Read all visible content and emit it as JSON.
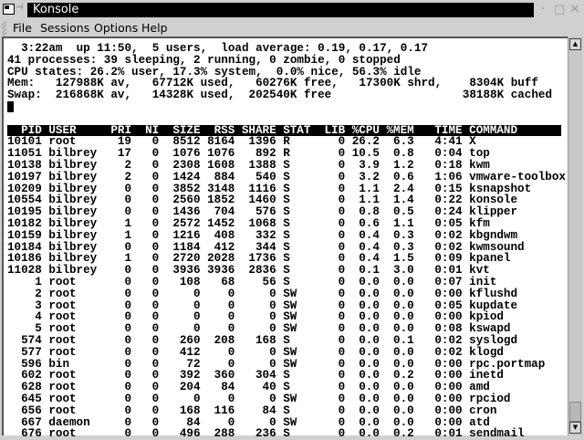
{
  "window": {
    "title": "Konsole",
    "icons": {
      "app": "terminal-icon",
      "pin": "pin-icon",
      "minimize": "minimize-icon",
      "maximize": "maximize-icon",
      "close": "close-icon"
    }
  },
  "menu": [
    "File",
    "Sessions",
    "Options",
    "Help"
  ],
  "summary": [
    "  3:22am  up 11:50,  5 users,  load average: 0.19, 0.17, 0.17",
    "41 processes: 39 sleeping, 2 running, 0 zombie, 0 stopped",
    "CPU states: 26.2% user, 17.3% system,  0.0% nice, 56.3% idle",
    "Mem:   127988K av,   67712K used,   60276K free,   17300K shrd,    8304K buff",
    "Swap:  216868K av,   14328K used,  202540K free                   38188K cached"
  ],
  "columns": [
    "PID",
    "USER",
    "PRI",
    "NI",
    "SIZE",
    "RSS",
    "SHARE",
    "STAT",
    "LIB",
    "%CPU",
    "%MEM",
    "TIME",
    "COMMAND"
  ],
  "processes": [
    [
      "10101",
      "root",
      "19",
      "0",
      "8512",
      "8164",
      "1396",
      "R",
      "0",
      "26.2",
      "6.3",
      "4:41",
      "X"
    ],
    [
      "11051",
      "bilbrey",
      "17",
      "0",
      "1076",
      "1076",
      "892",
      "R",
      "0",
      "10.5",
      "0.8",
      "0:04",
      "top"
    ],
    [
      "10138",
      "bilbrey",
      "2",
      "0",
      "2308",
      "1608",
      "1388",
      "S",
      "0",
      "3.9",
      "1.2",
      "0:18",
      "kwm"
    ],
    [
      "10197",
      "bilbrey",
      "2",
      "0",
      "1424",
      "884",
      "540",
      "S",
      "0",
      "3.2",
      "0.6",
      "1:06",
      "vmware-toolbox"
    ],
    [
      "10209",
      "bilbrey",
      "0",
      "0",
      "3852",
      "3148",
      "1116",
      "S",
      "0",
      "1.1",
      "2.4",
      "0:15",
      "ksnapshot"
    ],
    [
      "10554",
      "bilbrey",
      "0",
      "0",
      "2560",
      "1852",
      "1460",
      "S",
      "0",
      "1.1",
      "1.4",
      "0:22",
      "konsole"
    ],
    [
      "10195",
      "bilbrey",
      "0",
      "0",
      "1436",
      "704",
      "576",
      "S",
      "0",
      "0.8",
      "0.5",
      "0:24",
      "klipper"
    ],
    [
      "10182",
      "bilbrey",
      "1",
      "0",
      "2572",
      "1452",
      "1068",
      "S",
      "0",
      "0.6",
      "1.1",
      "0:05",
      "kfm"
    ],
    [
      "10159",
      "bilbrey",
      "1",
      "0",
      "1216",
      "408",
      "332",
      "S",
      "0",
      "0.4",
      "0.3",
      "0:02",
      "kbgndwm"
    ],
    [
      "10184",
      "bilbrey",
      "0",
      "0",
      "1184",
      "412",
      "344",
      "S",
      "0",
      "0.4",
      "0.3",
      "0:02",
      "kwmsound"
    ],
    [
      "10186",
      "bilbrey",
      "1",
      "0",
      "2720",
      "2028",
      "1736",
      "S",
      "0",
      "0.4",
      "1.5",
      "0:09",
      "kpanel"
    ],
    [
      "11028",
      "bilbrey",
      "0",
      "0",
      "3936",
      "3936",
      "2836",
      "S",
      "0",
      "0.1",
      "3.0",
      "0:01",
      "kvt"
    ],
    [
      "1",
      "root",
      "0",
      "0",
      "108",
      "68",
      "56",
      "S",
      "0",
      "0.0",
      "0.0",
      "0:07",
      "init"
    ],
    [
      "2",
      "root",
      "0",
      "0",
      "0",
      "0",
      "0",
      "SW",
      "0",
      "0.0",
      "0.0",
      "0:00",
      "kflushd"
    ],
    [
      "3",
      "root",
      "0",
      "0",
      "0",
      "0",
      "0",
      "SW",
      "0",
      "0.0",
      "0.0",
      "0:05",
      "kupdate"
    ],
    [
      "4",
      "root",
      "0",
      "0",
      "0",
      "0",
      "0",
      "SW",
      "0",
      "0.0",
      "0.0",
      "0:00",
      "kpiod"
    ],
    [
      "5",
      "root",
      "0",
      "0",
      "0",
      "0",
      "0",
      "SW",
      "0",
      "0.0",
      "0.0",
      "0:08",
      "kswapd"
    ],
    [
      "574",
      "root",
      "0",
      "0",
      "260",
      "208",
      "168",
      "S",
      "0",
      "0.0",
      "0.1",
      "0:02",
      "syslogd"
    ],
    [
      "577",
      "root",
      "0",
      "0",
      "412",
      "0",
      "0",
      "SW",
      "0",
      "0.0",
      "0.0",
      "0:02",
      "klogd"
    ],
    [
      "596",
      "bin",
      "0",
      "0",
      "72",
      "0",
      "0",
      "SW",
      "0",
      "0.0",
      "0.0",
      "0:00",
      "rpc.portmap"
    ],
    [
      "602",
      "root",
      "0",
      "0",
      "392",
      "360",
      "304",
      "S",
      "0",
      "0.0",
      "0.2",
      "0:00",
      "inetd"
    ],
    [
      "628",
      "root",
      "0",
      "0",
      "204",
      "84",
      "40",
      "S",
      "0",
      "0.0",
      "0.0",
      "0:00",
      "amd"
    ],
    [
      "645",
      "root",
      "0",
      "0",
      "0",
      "0",
      "0",
      "SW",
      "0",
      "0.0",
      "0.0",
      "0:00",
      "rpciod"
    ],
    [
      "656",
      "root",
      "0",
      "0",
      "168",
      "116",
      "84",
      "S",
      "0",
      "0.0",
      "0.0",
      "0:00",
      "cron"
    ],
    [
      "667",
      "daemon",
      "0",
      "0",
      "84",
      "0",
      "0",
      "SW",
      "0",
      "0.0",
      "0.0",
      "0:00",
      "atd"
    ],
    [
      "676",
      "root",
      "0",
      "0",
      "496",
      "288",
      "236",
      "S",
      "0",
      "0.0",
      "0.2",
      "0:01",
      "sendmail"
    ]
  ],
  "colors": {
    "title_bg": "#000000",
    "title_fg": "#ffffff",
    "terminal_bg": "#ffffff",
    "terminal_fg": "#000000",
    "chrome": "#d0d0d0"
  }
}
